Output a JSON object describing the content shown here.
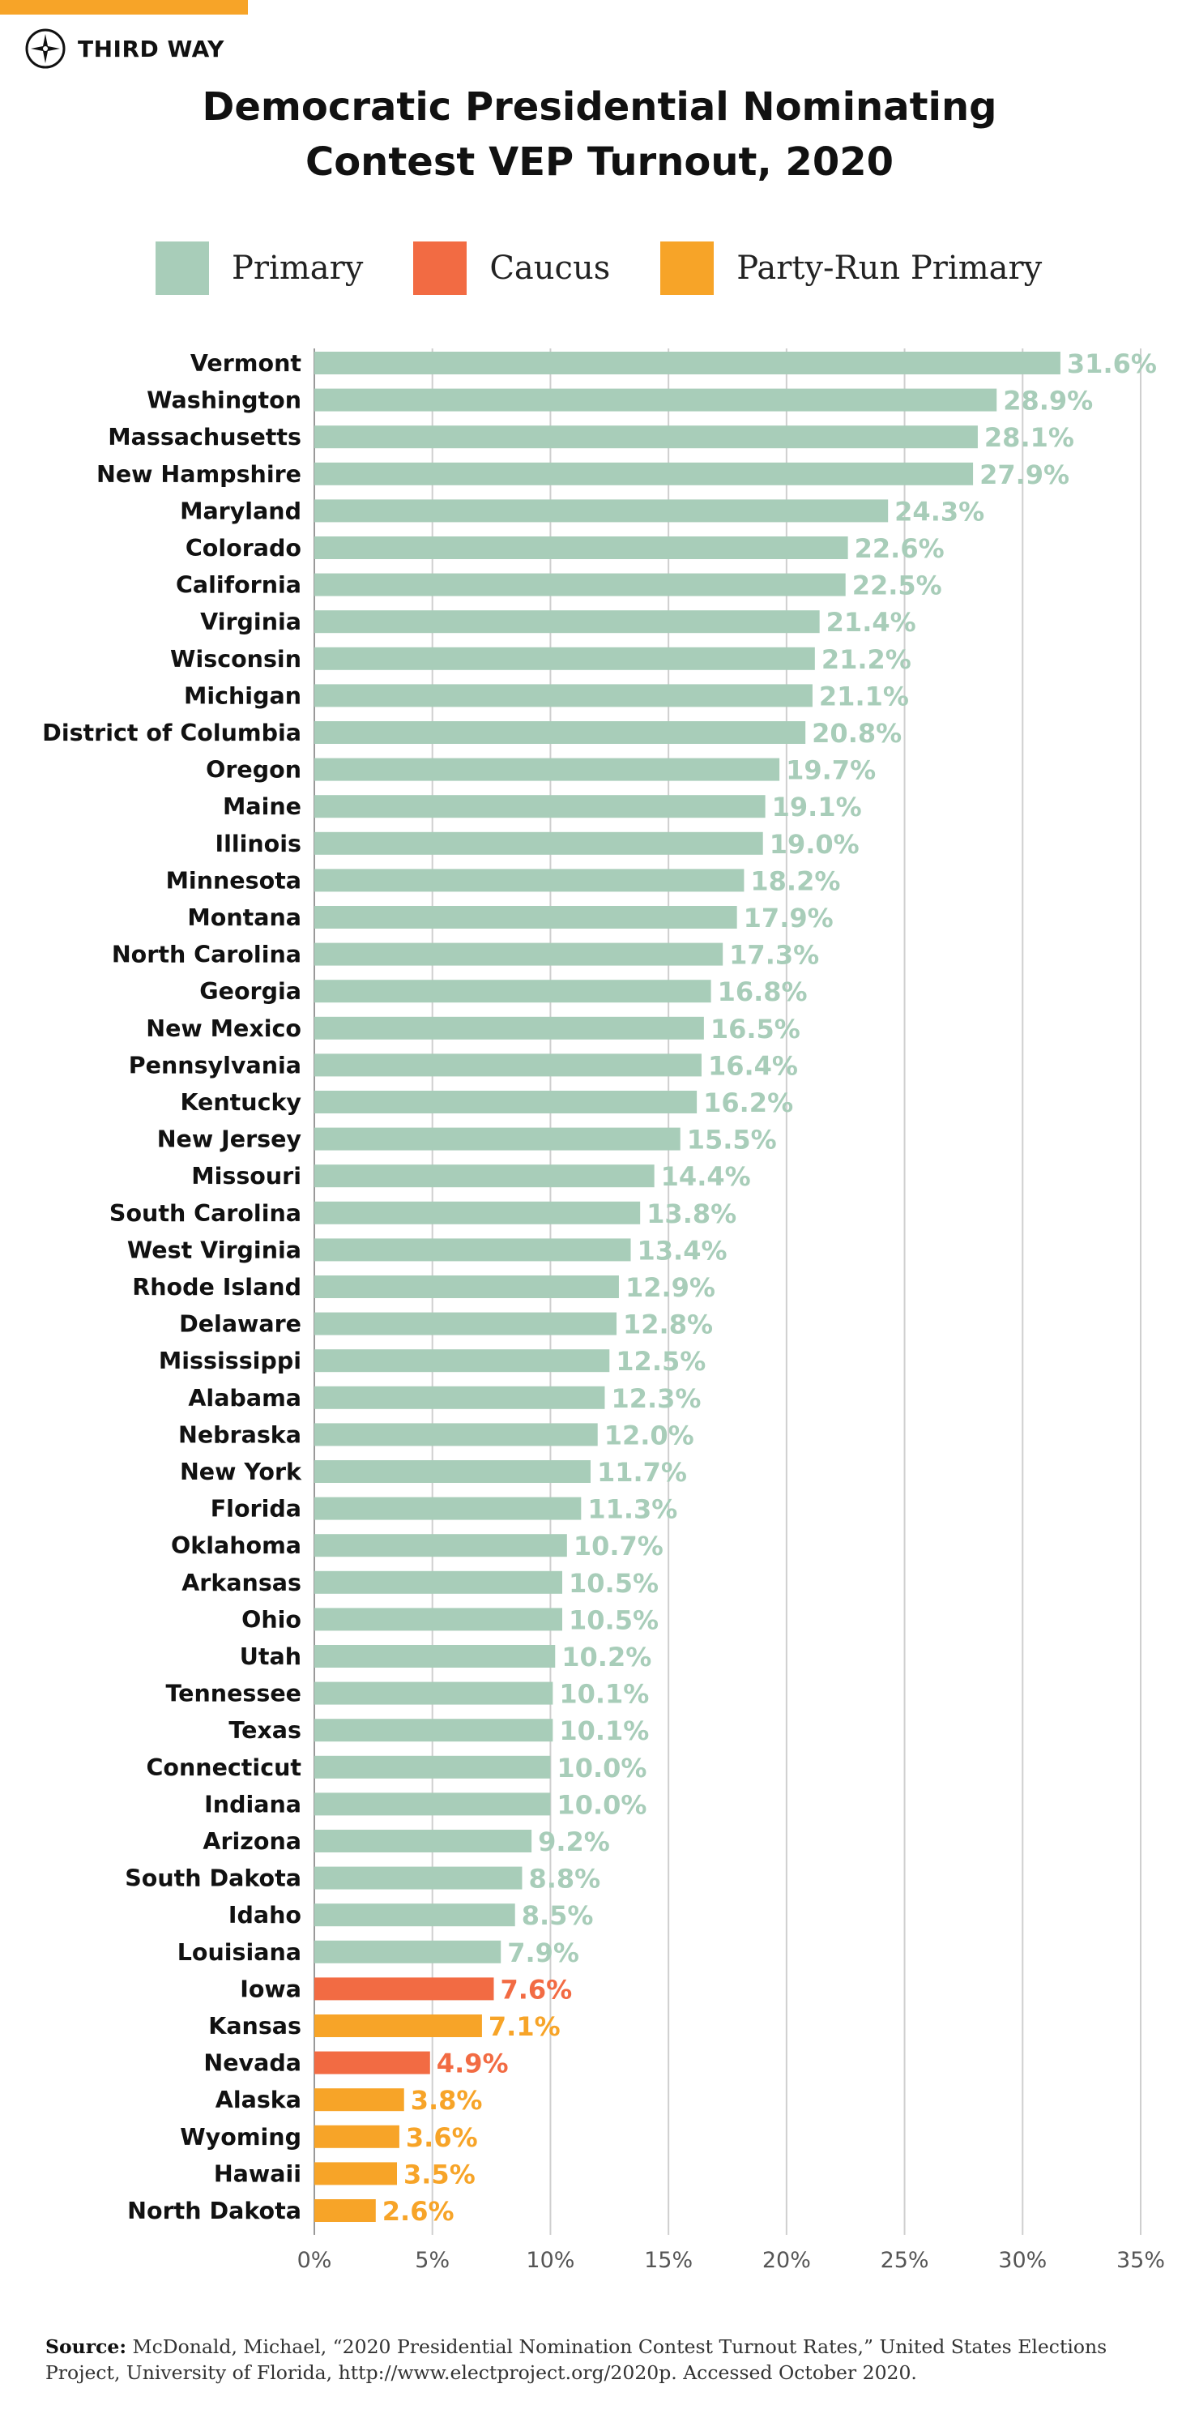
{
  "brand": {
    "name": "THIRD WAY",
    "accent_color": "#f7a428"
  },
  "title_lines": [
    "Democratic Presidential Nominating",
    "Contest VEP Turnout, 2020"
  ],
  "legend": [
    {
      "label": "Primary",
      "color": "#a8cdb9"
    },
    {
      "label": "Caucus",
      "color": "#f26b43"
    },
    {
      "label": "Party-Run Primary",
      "color": "#f7a428"
    }
  ],
  "source": {
    "label": "Source:",
    "text": "McDonald, Michael, “2020 Presidential Nomination Contest Turnout Rates,” United States Elections Project, University of Florida, http://www.electproject.org/2020p. Accessed October 2020."
  },
  "chart_data": {
    "type": "bar",
    "orientation": "horizontal",
    "title": "Democratic Presidential Nominating Contest VEP Turnout, 2020",
    "xlim": [
      0,
      35
    ],
    "x_ticks": [
      "0%",
      "5%",
      "10%",
      "15%",
      "20%",
      "25%",
      "30%",
      "35%"
    ],
    "grid": true,
    "legend_position": "top",
    "colors": {
      "Primary": "#a8cdb9",
      "Caucus": "#f26b43",
      "Party-Run Primary": "#f7a428"
    },
    "bars": [
      {
        "state": "Vermont",
        "value": 31.6,
        "label": "31.6%",
        "type": "Primary"
      },
      {
        "state": "Washington",
        "value": 28.9,
        "label": "28.9%",
        "type": "Primary"
      },
      {
        "state": "Massachusetts",
        "value": 28.1,
        "label": "28.1%",
        "type": "Primary"
      },
      {
        "state": "New Hampshire",
        "value": 27.9,
        "label": "27.9%",
        "type": "Primary"
      },
      {
        "state": "Maryland",
        "value": 24.3,
        "label": "24.3%",
        "type": "Primary"
      },
      {
        "state": "Colorado",
        "value": 22.6,
        "label": "22.6%",
        "type": "Primary"
      },
      {
        "state": "California",
        "value": 22.5,
        "label": "22.5%",
        "type": "Primary"
      },
      {
        "state": "Virginia",
        "value": 21.4,
        "label": "21.4%",
        "type": "Primary"
      },
      {
        "state": "Wisconsin",
        "value": 21.2,
        "label": "21.2%",
        "type": "Primary"
      },
      {
        "state": "Michigan",
        "value": 21.1,
        "label": "21.1%",
        "type": "Primary"
      },
      {
        "state": "District of Columbia",
        "value": 20.8,
        "label": "20.8%",
        "type": "Primary"
      },
      {
        "state": "Oregon",
        "value": 19.7,
        "label": "19.7%",
        "type": "Primary"
      },
      {
        "state": "Maine",
        "value": 19.1,
        "label": "19.1%",
        "type": "Primary"
      },
      {
        "state": "Illinois",
        "value": 19.0,
        "label": "19.0%",
        "type": "Primary"
      },
      {
        "state": "Minnesota",
        "value": 18.2,
        "label": "18.2%",
        "type": "Primary"
      },
      {
        "state": "Montana",
        "value": 17.9,
        "label": "17.9%",
        "type": "Primary"
      },
      {
        "state": "North Carolina",
        "value": 17.3,
        "label": "17.3%",
        "type": "Primary"
      },
      {
        "state": "Georgia",
        "value": 16.8,
        "label": "16.8%",
        "type": "Primary"
      },
      {
        "state": "New Mexico",
        "value": 16.5,
        "label": "16.5%",
        "type": "Primary"
      },
      {
        "state": "Pennsylvania",
        "value": 16.4,
        "label": "16.4%",
        "type": "Primary"
      },
      {
        "state": "Kentucky",
        "value": 16.2,
        "label": "16.2%",
        "type": "Primary"
      },
      {
        "state": "New Jersey",
        "value": 15.5,
        "label": "15.5%",
        "type": "Primary"
      },
      {
        "state": "Missouri",
        "value": 14.4,
        "label": "14.4%",
        "type": "Primary"
      },
      {
        "state": "South Carolina",
        "value": 13.8,
        "label": "13.8%",
        "type": "Primary"
      },
      {
        "state": "West Virginia",
        "value": 13.4,
        "label": "13.4%",
        "type": "Primary"
      },
      {
        "state": "Rhode Island",
        "value": 12.9,
        "label": "12.9%",
        "type": "Primary"
      },
      {
        "state": "Delaware",
        "value": 12.8,
        "label": "12.8%",
        "type": "Primary"
      },
      {
        "state": "Mississippi",
        "value": 12.5,
        "label": "12.5%",
        "type": "Primary"
      },
      {
        "state": "Alabama",
        "value": 12.3,
        "label": "12.3%",
        "type": "Primary"
      },
      {
        "state": "Nebraska",
        "value": 12.0,
        "label": "12.0%",
        "type": "Primary"
      },
      {
        "state": "New York",
        "value": 11.7,
        "label": "11.7%",
        "type": "Primary"
      },
      {
        "state": "Florida",
        "value": 11.3,
        "label": "11.3%",
        "type": "Primary"
      },
      {
        "state": "Oklahoma",
        "value": 10.7,
        "label": "10.7%",
        "type": "Primary"
      },
      {
        "state": "Arkansas",
        "value": 10.5,
        "label": "10.5%",
        "type": "Primary"
      },
      {
        "state": "Ohio",
        "value": 10.5,
        "label": "10.5%",
        "type": "Primary"
      },
      {
        "state": "Utah",
        "value": 10.2,
        "label": "10.2%",
        "type": "Primary"
      },
      {
        "state": "Tennessee",
        "value": 10.1,
        "label": "10.1%",
        "type": "Primary"
      },
      {
        "state": "Texas",
        "value": 10.1,
        "label": "10.1%",
        "type": "Primary"
      },
      {
        "state": "Connecticut",
        "value": 10.0,
        "label": "10.0%",
        "type": "Primary"
      },
      {
        "state": "Indiana",
        "value": 10.0,
        "label": "10.0%",
        "type": "Primary"
      },
      {
        "state": "Arizona",
        "value": 9.2,
        "label": "9.2%",
        "type": "Primary"
      },
      {
        "state": "South Dakota",
        "value": 8.8,
        "label": "8.8%",
        "type": "Primary"
      },
      {
        "state": "Idaho",
        "value": 8.5,
        "label": "8.5%",
        "type": "Primary"
      },
      {
        "state": "Louisiana",
        "value": 7.9,
        "label": "7.9%",
        "type": "Primary"
      },
      {
        "state": "Iowa",
        "value": 7.6,
        "label": "7.6%",
        "type": "Caucus"
      },
      {
        "state": "Kansas",
        "value": 7.1,
        "label": "7.1%",
        "type": "Party-Run Primary"
      },
      {
        "state": "Nevada",
        "value": 4.9,
        "label": "4.9%",
        "type": "Caucus"
      },
      {
        "state": "Alaska",
        "value": 3.8,
        "label": "3.8%",
        "type": "Party-Run Primary"
      },
      {
        "state": "Wyoming",
        "value": 3.6,
        "label": "3.6%",
        "type": "Party-Run Primary"
      },
      {
        "state": "Hawaii",
        "value": 3.5,
        "label": "3.5%",
        "type": "Party-Run Primary"
      },
      {
        "state": "North Dakota",
        "value": 2.6,
        "label": "2.6%",
        "type": "Party-Run Primary"
      }
    ]
  }
}
